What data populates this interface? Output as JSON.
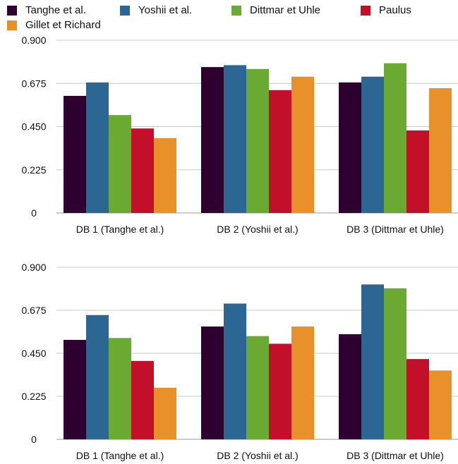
{
  "legend": [
    {
      "name": "Tanghe et al.",
      "color": "#2e0030"
    },
    {
      "name": "Yoshii et al.",
      "color": "#2b6792"
    },
    {
      "name": "Dittmar et Uhle",
      "color": "#6aaa32"
    },
    {
      "name": "Paulus",
      "color": "#c2102a"
    },
    {
      "name": "Gillet et Richard",
      "color": "#e8902a"
    }
  ],
  "chart_data": [
    {
      "type": "bar",
      "categories": [
        "DB 1 (Tanghe et al.)",
        "DB 2 (Yoshii et al.)",
        "DB 3 (Dittmar et Uhle)"
      ],
      "ylim": [
        0,
        0.9
      ],
      "yticks": [
        "0",
        "0.225",
        "0.450",
        "0.675",
        "0.900"
      ],
      "grid": true,
      "series": [
        {
          "name": "Tanghe et al.",
          "values": [
            0.61,
            0.76,
            0.68
          ]
        },
        {
          "name": "Yoshii et al.",
          "values": [
            0.68,
            0.77,
            0.71
          ]
        },
        {
          "name": "Dittmar et Uhle",
          "values": [
            0.51,
            0.75,
            0.78
          ]
        },
        {
          "name": "Paulus",
          "values": [
            0.44,
            0.64,
            0.43
          ]
        },
        {
          "name": "Gillet et Richard",
          "values": [
            0.39,
            0.71,
            0.65
          ]
        }
      ]
    },
    {
      "type": "bar",
      "categories": [
        "DB 1 (Tanghe et al.)",
        "DB 2 (Yoshii et al.)",
        "DB 3 (Dittmar et Uhle)"
      ],
      "ylim": [
        0,
        0.9
      ],
      "yticks": [
        "0",
        "0.225",
        "0.450",
        "0.675",
        "0.900"
      ],
      "grid": true,
      "series": [
        {
          "name": "Tanghe et al.",
          "values": [
            0.52,
            0.59,
            0.55
          ]
        },
        {
          "name": "Yoshii et al.",
          "values": [
            0.65,
            0.71,
            0.81
          ]
        },
        {
          "name": "Dittmar et Uhle",
          "values": [
            0.53,
            0.54,
            0.79
          ]
        },
        {
          "name": "Paulus",
          "values": [
            0.41,
            0.5,
            0.42
          ]
        },
        {
          "name": "Gillet et Richard",
          "values": [
            0.27,
            0.59,
            0.36
          ]
        }
      ]
    }
  ]
}
